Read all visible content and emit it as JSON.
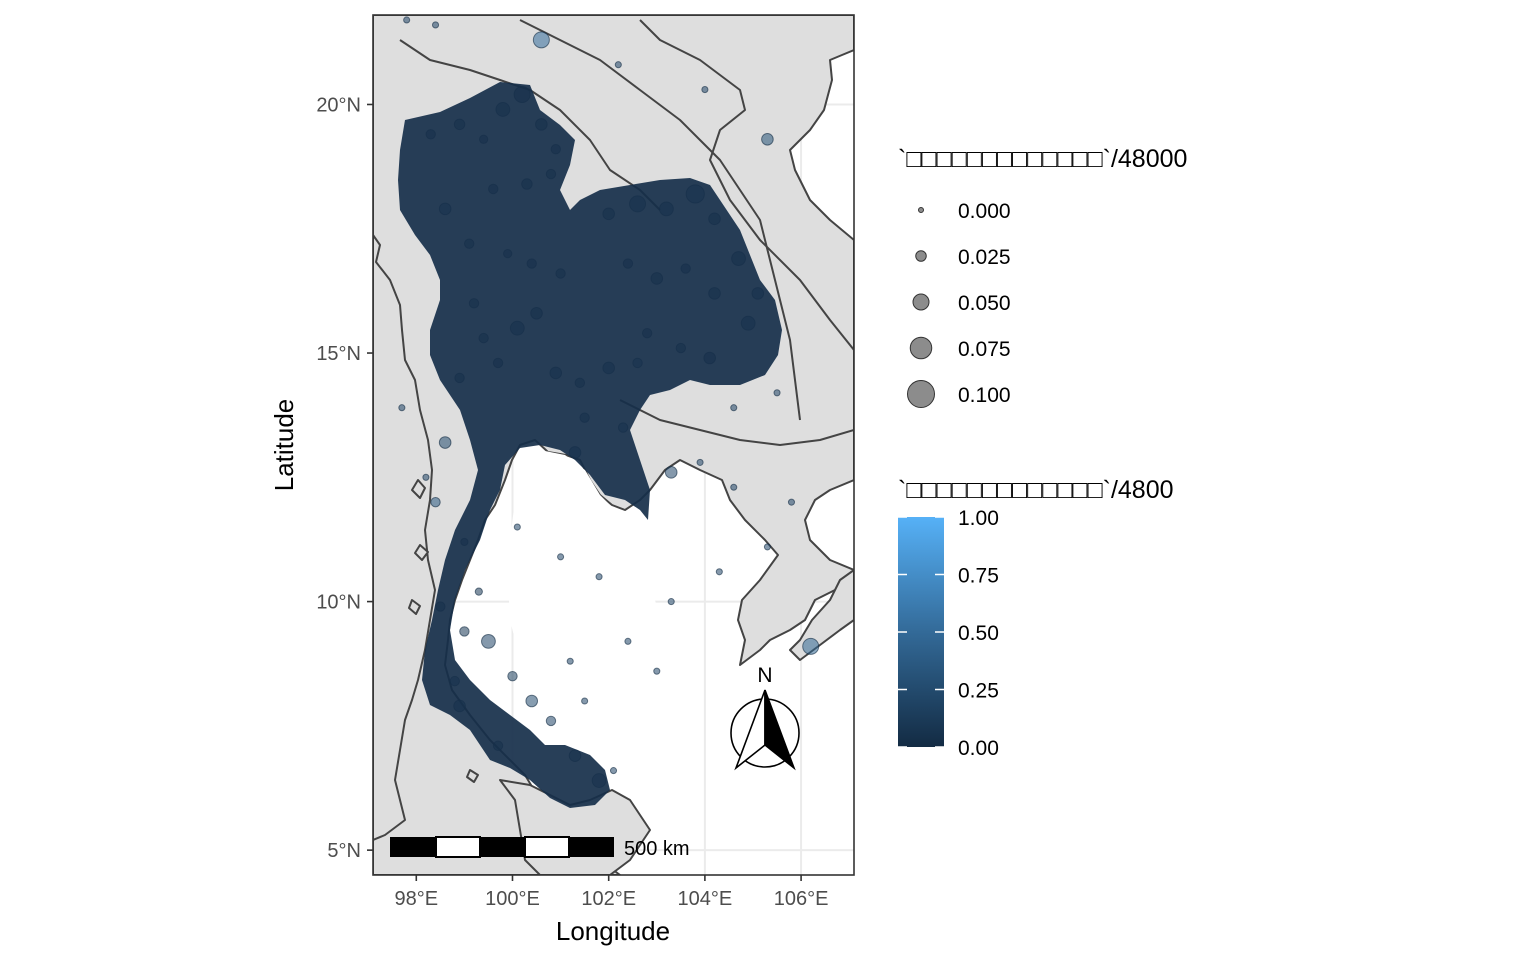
{
  "colors": {
    "panel_background": "#dedede",
    "sea": "#ffffff",
    "grid": "#ebebeb",
    "border": "#444444",
    "point_dark": "#132b43",
    "point_light": "#56b1f7",
    "size_legend_point": "#666666"
  },
  "axes": {
    "xlabel": "Longitude",
    "ylabel": "Latitude",
    "x_ticks": [
      {
        "value": 98,
        "label": "98°E"
      },
      {
        "value": 100,
        "label": "100°E"
      },
      {
        "value": 102,
        "label": "102°E"
      },
      {
        "value": 104,
        "label": "104°E"
      },
      {
        "value": 106,
        "label": "106°E"
      }
    ],
    "y_ticks": [
      {
        "value": 5,
        "label": "5°N"
      },
      {
        "value": 10,
        "label": "10°N"
      },
      {
        "value": 15,
        "label": "15°N"
      },
      {
        "value": 20,
        "label": "20°N"
      }
    ],
    "xlim": [
      97.1,
      107.1
    ],
    "ylim": [
      4.5,
      21.8
    ]
  },
  "legends": {
    "size": {
      "title": "`□□□□□□□□□□□□□`/48000",
      "entries": [
        {
          "label": "0.000",
          "value": 0.0
        },
        {
          "label": "0.025",
          "value": 0.025
        },
        {
          "label": "0.050",
          "value": 0.05
        },
        {
          "label": "0.075",
          "value": 0.075
        },
        {
          "label": "0.100",
          "value": 0.1
        }
      ]
    },
    "color": {
      "title": "`□□□□□□□□□□□□□`/4800",
      "breaks": [
        {
          "label": "1.00",
          "value": 1.0
        },
        {
          "label": "0.75",
          "value": 0.75
        },
        {
          "label": "0.50",
          "value": 0.5
        },
        {
          "label": "0.25",
          "value": 0.25
        },
        {
          "label": "0.00",
          "value": 0.0
        }
      ]
    }
  },
  "north_arrow": {
    "label": "N"
  },
  "scale_bar": {
    "label": "500 km"
  },
  "chart_data": {
    "type": "scatter",
    "x": [
      98.3,
      98.9,
      99.4,
      99.8,
      100.2,
      100.6,
      100.9,
      99.6,
      100.3,
      100.8,
      98.6,
      99.1,
      99.9,
      100.4,
      101.0,
      102.0,
      102.6,
      103.2,
      103.8,
      104.2,
      104.7,
      105.1,
      102.4,
      103.0,
      103.6,
      104.2,
      104.9,
      102.8,
      103.5,
      104.1,
      100.1,
      100.5,
      100.9,
      101.4,
      102.0,
      102.6,
      101.5,
      102.3,
      99.7,
      99.4,
      99.2,
      98.9,
      98.6,
      98.4,
      98.5,
      99.0,
      99.5,
      100.0,
      100.4,
      100.8,
      101.3,
      101.8,
      99.0,
      99.3,
      98.8,
      99.7,
      98.9,
      101.3,
      103.3,
      104.6,
      105.5,
      97.7,
      98.2,
      100.1,
      101.8,
      103.3,
      104.3,
      105.3,
      103.9,
      104.6,
      105.8,
      101.0,
      101.2,
      102.4,
      103.0,
      101.5,
      102.1,
      106.2,
      105.3,
      97.8,
      100.6,
      98.4,
      104.0,
      102.2
    ],
    "y": [
      19.4,
      19.6,
      19.3,
      19.9,
      20.2,
      19.6,
      19.1,
      18.3,
      18.4,
      18.6,
      17.9,
      17.2,
      17.0,
      16.8,
      16.6,
      17.8,
      18.0,
      17.9,
      18.2,
      17.7,
      16.9,
      16.2,
      16.8,
      16.5,
      16.7,
      16.2,
      15.6,
      15.4,
      15.1,
      14.9,
      15.5,
      15.8,
      14.6,
      14.4,
      14.7,
      14.8,
      13.7,
      13.5,
      14.8,
      15.3,
      16.0,
      14.5,
      13.2,
      12.0,
      9.9,
      9.4,
      9.2,
      8.5,
      8.0,
      7.6,
      6.9,
      6.4,
      11.2,
      10.2,
      8.4,
      7.1,
      7.9,
      13.0,
      12.6,
      13.9,
      14.2,
      13.9,
      12.5,
      11.5,
      10.5,
      10.0,
      10.6,
      11.1,
      12.8,
      12.3,
      12.0,
      10.9,
      8.8,
      9.2,
      8.6,
      8.0,
      6.6,
      9.1,
      19.3,
      21.7,
      21.3,
      21.6,
      20.3,
      20.8
    ],
    "size_values": [
      0.02,
      0.025,
      0.015,
      0.04,
      0.05,
      0.03,
      0.02,
      0.02,
      0.025,
      0.02,
      0.03,
      0.02,
      0.015,
      0.02,
      0.02,
      0.03,
      0.05,
      0.04,
      0.06,
      0.03,
      0.04,
      0.03,
      0.02,
      0.03,
      0.02,
      0.03,
      0.04,
      0.02,
      0.02,
      0.03,
      0.04,
      0.03,
      0.03,
      0.02,
      0.03,
      0.02,
      0.02,
      0.02,
      0.02,
      0.02,
      0.02,
      0.02,
      0.03,
      0.02,
      0.02,
      0.02,
      0.04,
      0.02,
      0.03,
      0.02,
      0.03,
      0.04,
      0.01,
      0.01,
      0.02,
      0.02,
      0.03,
      0.03,
      0.03,
      0.005,
      0.005,
      0.005,
      0.005,
      0.005,
      0.005,
      0.005,
      0.005,
      0.005,
      0.005,
      0.005,
      0.005,
      0.005,
      0.005,
      0.005,
      0.005,
      0.005,
      0.005,
      0.05,
      0.03,
      0.005,
      0.05,
      0.005,
      0.005,
      0.005
    ],
    "color_values": [
      0.1,
      0.15,
      0.1,
      0.2,
      0.1,
      0.15,
      0.1,
      0.1,
      0.2,
      0.15,
      0.35,
      0.15,
      0.1,
      0.1,
      0.15,
      0.2,
      0.3,
      0.25,
      0.35,
      0.2,
      0.15,
      0.25,
      0.1,
      0.15,
      0.1,
      0.2,
      0.25,
      0.1,
      0.15,
      0.1,
      0.3,
      0.2,
      0.25,
      0.2,
      0.3,
      0.45,
      0.2,
      0.35,
      0.1,
      0.15,
      0.2,
      0.15,
      0.25,
      0.35,
      0.15,
      0.1,
      0.2,
      0.15,
      0.25,
      0.2,
      0.3,
      0.25,
      0.1,
      0.1,
      0.2,
      0.15,
      0.3,
      0.3,
      0.2,
      0.2,
      0.2,
      0.2,
      0.2,
      0.2,
      0.2,
      0.2,
      0.2,
      0.2,
      0.2,
      0.2,
      0.2,
      0.2,
      0.2,
      0.2,
      0.2,
      0.2,
      0.2,
      0.45,
      0.3,
      0.2,
      0.5,
      0.2,
      0.2,
      0.2
    ]
  }
}
